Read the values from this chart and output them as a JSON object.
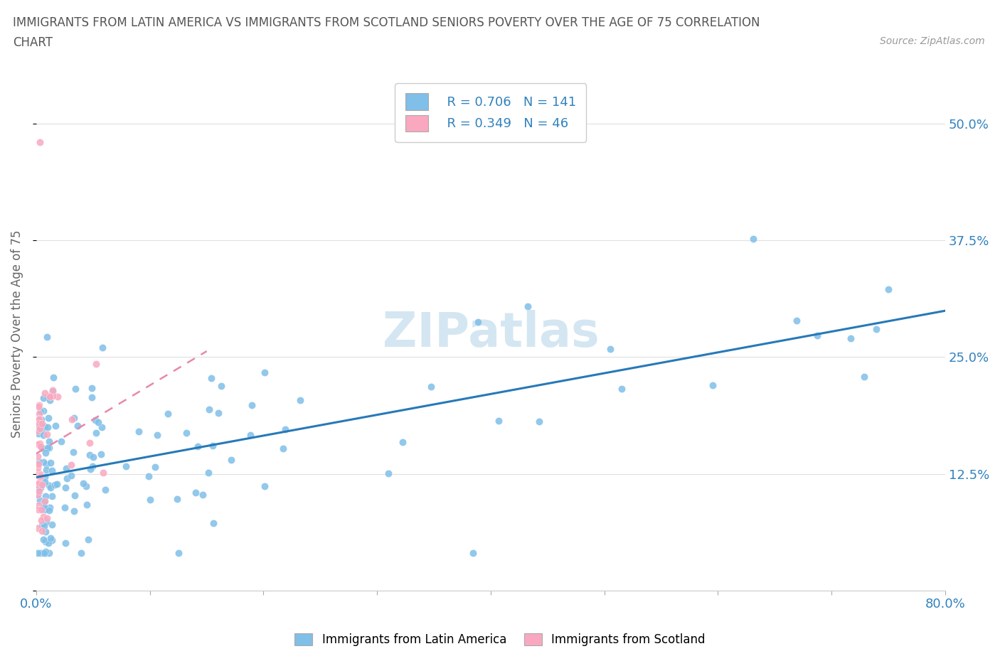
{
  "title_line1": "IMMIGRANTS FROM LATIN AMERICA VS IMMIGRANTS FROM SCOTLAND SENIORS POVERTY OVER THE AGE OF 75 CORRELATION",
  "title_line2": "CHART",
  "source": "Source: ZipAtlas.com",
  "ylabel": "Seniors Poverty Over the Age of 75",
  "xmin": 0.0,
  "xmax": 0.8,
  "ymin": 0.0,
  "ymax": 0.55,
  "ytick_positions": [
    0.0,
    0.125,
    0.25,
    0.375,
    0.5
  ],
  "ytick_labels_right": [
    "",
    "12.5%",
    "25.0%",
    "37.5%",
    "50.0%"
  ],
  "xtick_positions": [
    0.0,
    0.1,
    0.2,
    0.3,
    0.4,
    0.5,
    0.6,
    0.7,
    0.8
  ],
  "xtick_labels": [
    "0.0%",
    "",
    "",
    "",
    "",
    "",
    "",
    "",
    "80.0%"
  ],
  "legend_r1": "R = 0.706",
  "legend_n1": "N = 141",
  "legend_r2": "R = 0.349",
  "legend_n2": "N = 46",
  "color_blue": "#7fbfe8",
  "color_pink": "#f9a8c0",
  "color_blue_line": "#2779b8",
  "color_pink_line": "#e888aa",
  "color_blue_text": "#3182bd",
  "watermark": "ZIPatlas",
  "watermark_color": "#d0e4f0",
  "grid_color": "#e0e0e0",
  "title_color": "#555555",
  "source_color": "#999999",
  "ylabel_color": "#666666"
}
